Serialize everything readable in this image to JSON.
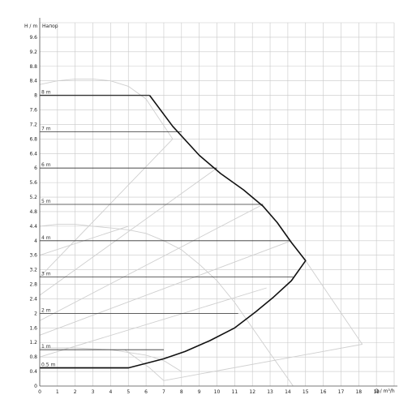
{
  "chart_data": {
    "type": "line",
    "ylabel": "H / m",
    "ylabel_extra": "Напор",
    "xlabel": "Q / m³/h",
    "xlim": [
      0,
      20
    ],
    "ylim": [
      0,
      10
    ],
    "grid": true,
    "x_ticks": [
      "0",
      "1",
      "2",
      "3",
      "4",
      "5",
      "6",
      "7",
      "8",
      "9",
      "10",
      "11",
      "12",
      "13",
      "14",
      "15",
      "16",
      "17",
      "18",
      "19"
    ],
    "y_ticks": [
      "0",
      "0.4",
      "0.8",
      "1.2",
      "1.6",
      "2",
      "2.4",
      "2.8",
      "3.2",
      "3.6",
      "4",
      "4.4",
      "4.8",
      "5.2",
      "5.6",
      "6",
      "6.4",
      "6.8",
      "7.2",
      "7.6",
      "8",
      "8.4",
      "8.8",
      "9.2",
      "9.6"
    ],
    "y_ticks_values": [
      0,
      0.4,
      0.8,
      1.2,
      1.6,
      2,
      2.4,
      2.8,
      3.2,
      3.6,
      4,
      4.4,
      4.8,
      5.2,
      5.6,
      6,
      6.4,
      6.8,
      7.2,
      7.6,
      8,
      8.4,
      8.8,
      9.2,
      9.6
    ],
    "pressure_lines": [
      {
        "label": "8 m",
        "y": 8,
        "x_end": 6.2
      },
      {
        "label": "7 m",
        "y": 7,
        "x_end": 8.0
      },
      {
        "label": "6 m",
        "y": 6,
        "x_end": 10.0
      },
      {
        "label": "5 m",
        "y": 5,
        "x_end": 12.6
      },
      {
        "label": "4 m",
        "y": 4,
        "x_end": 14.1
      },
      {
        "label": "3 m",
        "y": 3,
        "x_end": 14.3
      },
      {
        "label": "2 m",
        "y": 2,
        "x_end": 11.2
      },
      {
        "label": "1 m",
        "y": 1,
        "x_end": 7.0
      },
      {
        "label": "0.5 m",
        "y": 0.5,
        "x_end": 5.0
      }
    ],
    "envelope": {
      "x": [
        6.2,
        7.5,
        9.0,
        10.2,
        11.5,
        12.6,
        13.4,
        14.2,
        15.0,
        14.2,
        13.2,
        12.2,
        11.0,
        9.6,
        8.2,
        7.0,
        5.0,
        0
      ],
      "y": [
        8.0,
        7.15,
        6.35,
        5.85,
        5.4,
        4.95,
        4.5,
        3.95,
        3.45,
        2.9,
        2.45,
        2.05,
        1.6,
        1.25,
        0.95,
        0.75,
        0.5,
        0.5
      ]
    },
    "gray_curves": [
      {
        "x": [
          0,
          1,
          2,
          3,
          4,
          5,
          6,
          7.5
        ],
        "y": [
          8.3,
          8.4,
          8.45,
          8.45,
          8.4,
          8.25,
          7.9,
          6.8
        ]
      },
      {
        "x": [
          0,
          1,
          2,
          3,
          4,
          5,
          6,
          7,
          8,
          9,
          10,
          11,
          12,
          13,
          14.3
        ],
        "y": [
          4.4,
          4.45,
          4.45,
          4.4,
          4.35,
          4.3,
          4.2,
          4.0,
          3.75,
          3.35,
          2.9,
          2.3,
          1.6,
          0.9,
          0.0
        ]
      },
      {
        "x": [
          0,
          2,
          4,
          6,
          7,
          8
        ],
        "y": [
          1.05,
          1.05,
          1.0,
          0.85,
          0.7,
          0.4
        ]
      },
      {
        "x": [
          0,
          5
        ],
        "y": [
          3.6,
          4.4
        ]
      },
      {
        "x": [
          0,
          7.5
        ],
        "y": [
          3.0,
          6.8
        ]
      },
      {
        "x": [
          0,
          10
        ],
        "y": [
          2.5,
          6.0
        ]
      },
      {
        "x": [
          0,
          12.6
        ],
        "y": [
          1.8,
          5.0
        ]
      },
      {
        "x": [
          0,
          14.2
        ],
        "y": [
          1.4,
          4.0
        ]
      },
      {
        "x": [
          0,
          12.8
        ],
        "y": [
          0.8,
          2.7
        ]
      },
      {
        "x": [
          7,
          18.2
        ],
        "y": [
          0.15,
          1.15
        ]
      },
      {
        "x": [
          15,
          18.2
        ],
        "y": [
          3.45,
          1.15
        ]
      },
      {
        "x": [
          4.8,
          6.2,
          7.0
        ],
        "y": [
          1.0,
          0.5,
          0.15
        ]
      }
    ],
    "colors": {
      "grid": "#c8c8c8",
      "envelope": "#111111",
      "pressure": "#333333",
      "curve": "#cfcfcf"
    }
  }
}
